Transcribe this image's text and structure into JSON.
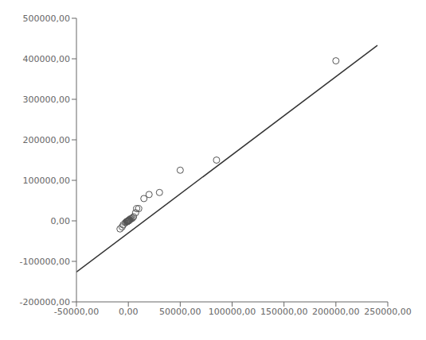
{
  "chart_data": {
    "type": "scatter",
    "xlim": [
      -50000,
      250000
    ],
    "ylim": [
      -200000,
      500000
    ],
    "xticks": [
      {
        "value": -50000,
        "label": "-50000,00"
      },
      {
        "value": 0,
        "label": "0,00"
      },
      {
        "value": 50000,
        "label": "50000,00"
      },
      {
        "value": 100000,
        "label": "100000,00"
      },
      {
        "value": 150000,
        "label": "150000,00"
      },
      {
        "value": 200000,
        "label": "200000,00"
      },
      {
        "value": 250000,
        "label": "250000,00"
      }
    ],
    "yticks": [
      {
        "value": -200000,
        "label": "-200000,00"
      },
      {
        "value": -100000,
        "label": "-100000,00"
      },
      {
        "value": 0,
        "label": "0,00"
      },
      {
        "value": 100000,
        "label": "100000,00"
      },
      {
        "value": 200000,
        "label": "200000,00"
      },
      {
        "value": 300000,
        "label": "300000,00"
      },
      {
        "value": 400000,
        "label": "400000,00"
      },
      {
        "value": 500000,
        "label": "500000,00"
      }
    ],
    "grid": false,
    "series": [
      {
        "type": "scatter",
        "marker": "circle",
        "color": "#555555",
        "x": [
          -8000,
          -6000,
          -5000,
          -3000,
          -2000,
          -1500,
          -1000,
          -800,
          -500,
          -400,
          -300,
          -200,
          -100,
          0,
          100,
          200,
          300,
          500,
          800,
          1000,
          1500,
          2000,
          3000,
          4000,
          5000,
          7000,
          8000,
          10000,
          15000,
          20000,
          30000,
          50000,
          85000,
          200000
        ],
        "values": [
          -20000,
          -15000,
          -10000,
          -5000,
          -3000,
          -2000,
          -1000,
          -1500,
          -1000,
          -500,
          -500,
          -200,
          -100,
          0,
          200,
          500,
          500,
          1000,
          2000,
          2000,
          3000,
          5000,
          5000,
          7000,
          10000,
          20000,
          30000,
          30000,
          55000,
          65000,
          70000,
          125000,
          150000,
          395000
        ]
      },
      {
        "type": "line",
        "color": "#333333",
        "x": [
          -50000,
          240000
        ],
        "values": [
          -126500,
          433200
        ]
      }
    ]
  }
}
